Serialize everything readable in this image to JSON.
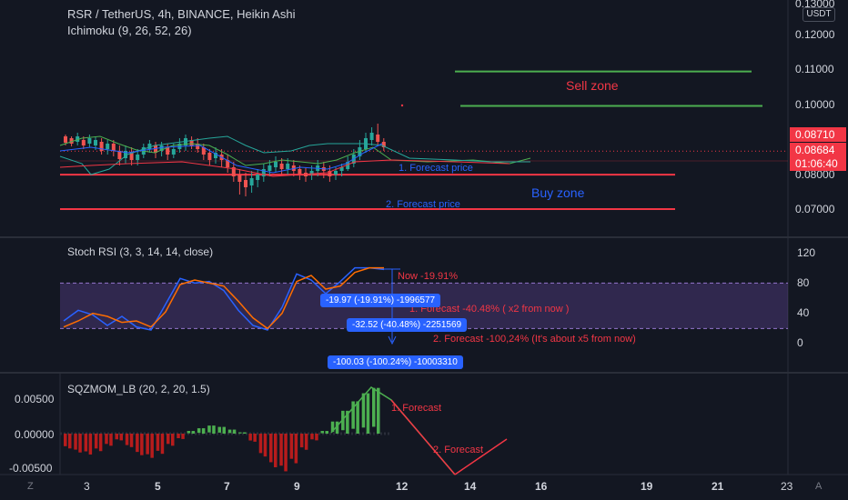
{
  "header": {
    "title": "RSR / TetherUS, 4h, BINANCE, Heikin Ashi",
    "indicator": "Ichimoku (9, 26, 52, 26)",
    "stoch_title": "Stoch RSI (3, 3, 14, 14, close)",
    "sqz_title": "SQZMOM_LB (20, 2, 20, 1.5)",
    "currency": "USDT"
  },
  "price_axis": {
    "ticks": [
      "0.13000",
      "0.12000",
      "0.11000",
      "0.10000",
      "0.08000",
      "0.07000"
    ],
    "tag_high": "0.08710",
    "tag_last": "0.08684",
    "tag_timer": "01:06:40",
    "tag_high_color": "#f23645",
    "tag_last_color": "#f23645"
  },
  "stoch_axis": {
    "ticks": [
      "120",
      "80",
      "40",
      "0"
    ]
  },
  "sqz_axis": {
    "ticks": [
      "0.00500",
      "0.00000",
      "-0.00500"
    ]
  },
  "time_axis": {
    "ticks": [
      "3",
      "5",
      "7",
      "9",
      "12",
      "14",
      "16",
      "19",
      "21",
      "23"
    ]
  },
  "annotations": {
    "sell_zone": "Sell zone",
    "buy_zone": "Buy zone",
    "forecast1_price": "1. Forecast price",
    "forecast2_price": "2. Forecast price",
    "stoch_now": "Now -19.91%",
    "stoch_f1": "1. Forecast -40.48% ( x2 from now )",
    "stoch_f2": "2. Forecast -100,24% (It's about x5 from now)",
    "box1": "-19.97 (-19.91%) -1996577",
    "box2": "-32.52 (-40.48%) -2251569",
    "box3": "-100.03 (-100.24%) -10003310",
    "sqz_f1": "1. Forecast",
    "sqz_f2": "2. Forecast"
  },
  "bottom_bar": {
    "left_icon": "Z",
    "right_icon": "A"
  },
  "colors": {
    "background": "#131722",
    "up": "#26a69a",
    "down": "#ef5350",
    "sell_line": "#4caf50",
    "buy_line": "#f23645",
    "stoch_k": "#2962ff",
    "stoch_d": "#ff6d00",
    "band": "#7e57c2"
  },
  "chart_data": [
    {
      "type": "line",
      "title": "RSR / TetherUS, 4h, BINANCE, Heikin Ashi",
      "y_range": [
        0.065,
        0.13
      ],
      "levels": [
        {
          "name": "Sell zone",
          "values": [
            0.11,
            0.1
          ]
        },
        {
          "name": "1. Forecast price",
          "value": 0.08
        },
        {
          "name": "2. Forecast price",
          "value": 0.07
        }
      ],
      "last_price": 0.08684,
      "high_price": 0.0871
    },
    {
      "type": "line",
      "title": "Stoch RSI (3, 3, 14, 14, close)",
      "y_range": [
        0,
        120
      ],
      "band": [
        20,
        80
      ],
      "series": [
        {
          "values": [
            30,
            44,
            38,
            24,
            36,
            22,
            18,
            52,
            86,
            80,
            82,
            70,
            44,
            24,
            18,
            48,
            92,
            84,
            66,
            82,
            100,
            100,
            98
          ]
        },
        {
          "values": [
            22,
            30,
            40,
            36,
            28,
            30,
            22,
            42,
            78,
            84,
            80,
            76,
            56,
            34,
            20,
            40,
            82,
            90,
            72,
            76,
            94,
            100,
            100
          ]
        }
      ]
    },
    {
      "type": "bar",
      "title": "SQZMOM_LB (20, 2, 20, 1.5)",
      "y_range": [
        -0.0065,
        0.0065
      ],
      "values": [
        -0.0022,
        -0.0028,
        -0.0031,
        -0.0026,
        -0.0018,
        -0.001,
        -0.002,
        -0.0032,
        -0.0036,
        -0.003,
        -0.0018,
        -0.0008,
        0.0004,
        0.0008,
        0.0012,
        0.001,
        0.0006,
        0.0002,
        -0.0012,
        -0.0034,
        -0.005,
        -0.0056,
        -0.0044,
        -0.0024,
        -0.001,
        0.0004,
        0.0018,
        0.0034,
        0.0048,
        0.006,
        0.0068
      ]
    }
  ]
}
